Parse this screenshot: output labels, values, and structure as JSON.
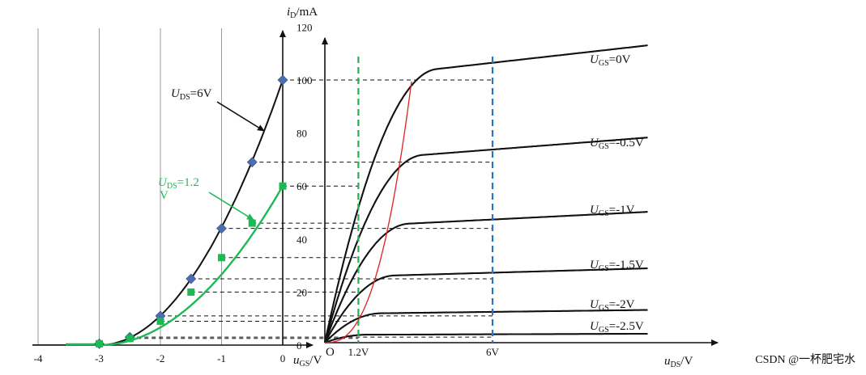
{
  "chart_data": [
    {
      "type": "line",
      "title": "",
      "xlabel_main": "u",
      "xlabel_sub": "GS",
      "xlabel_unit": "/V",
      "ylabel_main": "i",
      "ylabel_sub": "D",
      "ylabel_unit": "/mA",
      "xlim": [
        -4,
        0
      ],
      "ylim": [
        0,
        120
      ],
      "x_ticks": [
        "-4",
        "-3",
        "-2",
        "-1",
        "0"
      ],
      "y_ticks": [
        "0",
        "20",
        "40",
        "60",
        "80",
        "100",
        "120"
      ],
      "grid": "vertical lines at integer u_GS",
      "series": [
        {
          "name": "U_DS=6V",
          "label_main": "U",
          "label_sub": "DS",
          "label_rest": "=6V",
          "color": "#111111",
          "marker": "diamond",
          "marker_color": "#4a6fb0",
          "x": [
            -3,
            -2.5,
            -2,
            -1.5,
            -1,
            -0.5,
            0
          ],
          "y": [
            0.5,
            3,
            11,
            25,
            44,
            69,
            100
          ]
        },
        {
          "name": "U_DS=1.2V",
          "label_main": "U",
          "label_sub": "DS",
          "label_rest": "=1.2",
          "label_wrap": "V",
          "color": "#1db954",
          "marker": "square",
          "marker_color": "#1db954",
          "x": [
            -3,
            -2.5,
            -2,
            -1.5,
            -1,
            -0.5,
            0
          ],
          "y": [
            0.5,
            2.5,
            9,
            20,
            33,
            46,
            60
          ]
        }
      ]
    },
    {
      "type": "line",
      "title": "",
      "origin_label": "O",
      "xlabel_main": "u",
      "xlabel_sub": "DS",
      "xlabel_unit": "/V",
      "x_markers": [
        {
          "value": 1.2,
          "label": "1.2V",
          "color": "#22b14c"
        },
        {
          "value": 6,
          "label": "6V",
          "color": "#1f77d0"
        }
      ],
      "series": [
        {
          "name": "U_GS=0V",
          "label_main": "U",
          "label_sub": "GS",
          "label_rest": "=0V",
          "vgs": 0,
          "saturation_ma": 100
        },
        {
          "name": "U_GS=-0.5V",
          "label_main": "U",
          "label_sub": "GS",
          "label_rest": "=-0.5V",
          "vgs": -0.5,
          "saturation_ma": 69
        },
        {
          "name": "U_GS=-1V",
          "label_main": "U",
          "label_sub": "GS",
          "label_rest": "=-1V",
          "vgs": -1,
          "saturation_ma": 44
        },
        {
          "name": "U_GS=-1.5V",
          "label_main": "U",
          "label_sub": "GS",
          "label_rest": "=-1.5V",
          "vgs": -1.5,
          "saturation_ma": 25
        },
        {
          "name": "U_GS=-2V",
          "label_main": "U",
          "label_sub": "GS",
          "label_rest": "=-2V",
          "vgs": -2,
          "saturation_ma": 11
        },
        {
          "name": "U_GS=-2.5V",
          "label_main": "U",
          "label_sub": "GS",
          "label_rest": "=-2.5V",
          "vgs": -2.5,
          "saturation_ma": 3
        }
      ],
      "boundary_curve_color": "#e02020"
    }
  ],
  "watermark": "CSDN @一杯肥宅水"
}
